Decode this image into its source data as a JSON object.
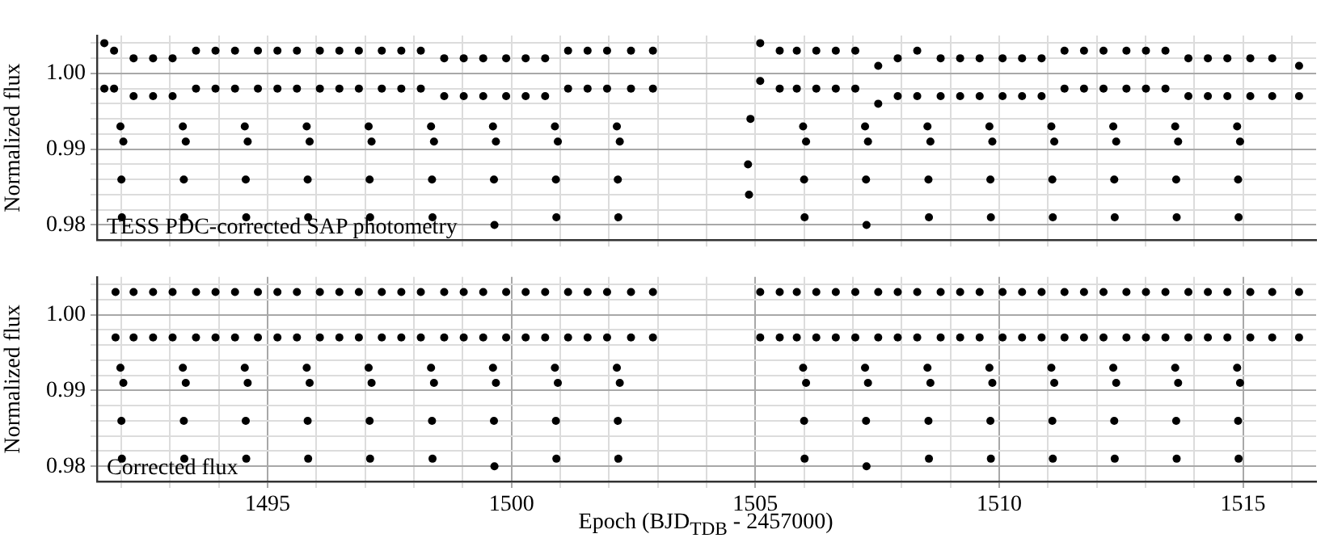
{
  "chart_data": [
    {
      "type": "scatter",
      "ylabel": "Normalized flux",
      "annotations": [
        "TESS PDC-corrected SAP photometry"
      ],
      "xlim": [
        1491.5,
        1516.5
      ],
      "ylim": [
        0.978,
        1.005
      ],
      "xticks": [
        {
          "value": 1492,
          "label": null
        },
        {
          "value": 1493,
          "label": null
        },
        {
          "value": 1494,
          "label": null
        },
        {
          "value": 1495,
          "label": null
        },
        {
          "value": 1496,
          "label": null
        },
        {
          "value": 1497,
          "label": null
        },
        {
          "value": 1498,
          "label": null
        },
        {
          "value": 1499,
          "label": null
        },
        {
          "value": 1500,
          "label": null
        },
        {
          "value": 1501,
          "label": null
        },
        {
          "value": 1502,
          "label": null
        },
        {
          "value": 1503,
          "label": null
        },
        {
          "value": 1504,
          "label": null
        },
        {
          "value": 1505,
          "label": null
        },
        {
          "value": 1506,
          "label": null
        },
        {
          "value": 1507,
          "label": null
        },
        {
          "value": 1508,
          "label": null
        },
        {
          "value": 1509,
          "label": null
        },
        {
          "value": 1510,
          "label": null
        },
        {
          "value": 1511,
          "label": null
        },
        {
          "value": 1512,
          "label": null
        },
        {
          "value": 1513,
          "label": null
        },
        {
          "value": 1514,
          "label": null
        },
        {
          "value": 1515,
          "label": null
        },
        {
          "value": 1516,
          "label": null
        }
      ],
      "yticks": [
        {
          "value": 0.98,
          "label": "0.98"
        },
        {
          "value": 0.982,
          "label": null
        },
        {
          "value": 0.984,
          "label": null
        },
        {
          "value": 0.986,
          "label": null
        },
        {
          "value": 0.988,
          "label": null
        },
        {
          "value": 0.99,
          "label": "0.99"
        },
        {
          "value": 0.992,
          "label": null
        },
        {
          "value": 0.994,
          "label": null
        },
        {
          "value": 0.996,
          "label": null
        },
        {
          "value": 0.998,
          "label": null
        },
        {
          "value": 1.0,
          "label": "1.00"
        },
        {
          "value": 1.002,
          "label": null
        },
        {
          "value": 1.004,
          "label": null
        }
      ],
      "grid": true,
      "legend": false,
      "marker": "circle",
      "tick_labels": "y",
      "series": [
        {
          "color": "#000000",
          "x": [
            1491.65,
            1491.65,
            1491.85,
            1491.85,
            1491.98,
            1492.0,
            1492.01,
            1492.04,
            1492.25,
            1492.25,
            1492.65,
            1492.65,
            1493.05,
            1493.05,
            1493.26,
            1493.28,
            1493.29,
            1493.32,
            1493.53,
            1493.53,
            1493.93,
            1493.93,
            1494.33,
            1494.33,
            1494.53,
            1494.55,
            1494.56,
            1494.59,
            1494.8,
            1494.8,
            1495.2,
            1495.2,
            1495.6,
            1495.6,
            1495.8,
            1495.82,
            1495.83,
            1495.86,
            1496.07,
            1496.07,
            1496.47,
            1496.47,
            1496.87,
            1496.87,
            1497.07,
            1497.09,
            1497.1,
            1497.13,
            1497.34,
            1497.34,
            1497.74,
            1497.74,
            1498.14,
            1498.14,
            1498.35,
            1498.37,
            1498.38,
            1498.41,
            1498.62,
            1498.62,
            1499.02,
            1499.02,
            1499.42,
            1499.42,
            1499.62,
            1499.64,
            1499.65,
            1499.68,
            1499.89,
            1499.89,
            1500.29,
            1500.29,
            1500.69,
            1500.69,
            1500.89,
            1500.91,
            1500.92,
            1500.95,
            1501.16,
            1501.16,
            1501.56,
            1501.56,
            1501.96,
            1501.96,
            1502.16,
            1502.18,
            1502.19,
            1502.22,
            1502.45,
            1502.45,
            1502.9,
            1502.9,
            1504.85,
            1504.87,
            1504.9,
            1505.1,
            1505.1,
            1505.5,
            1505.5,
            1505.85,
            1505.85,
            1505.98,
            1506.0,
            1506.01,
            1506.04,
            1506.25,
            1506.25,
            1506.65,
            1506.65,
            1507.05,
            1507.05,
            1507.25,
            1507.27,
            1507.28,
            1507.31,
            1507.52,
            1507.52,
            1507.92,
            1507.92,
            1508.32,
            1508.32,
            1508.53,
            1508.55,
            1508.56,
            1508.59,
            1508.8,
            1508.8,
            1509.2,
            1509.2,
            1509.6,
            1509.6,
            1509.8,
            1509.82,
            1509.83,
            1509.86,
            1510.07,
            1510.07,
            1510.47,
            1510.47,
            1510.87,
            1510.87,
            1511.07,
            1511.09,
            1511.1,
            1511.13,
            1511.34,
            1511.34,
            1511.74,
            1511.74,
            1512.14,
            1512.14,
            1512.34,
            1512.36,
            1512.37,
            1512.4,
            1512.61,
            1512.61,
            1513.01,
            1513.01,
            1513.41,
            1513.41,
            1513.61,
            1513.63,
            1513.64,
            1513.67,
            1513.88,
            1513.88,
            1514.28,
            1514.28,
            1514.68,
            1514.68,
            1514.88,
            1514.9,
            1514.91,
            1514.94,
            1515.15,
            1515.15,
            1515.6,
            1515.6,
            1516.15,
            1516.15
          ],
          "values": [
            1.004,
            0.998,
            1.003,
            0.998,
            0.993,
            0.986,
            0.981,
            0.991,
            1.002,
            0.997,
            1.002,
            0.997,
            1.002,
            0.997,
            0.993,
            0.986,
            0.981,
            0.991,
            1.003,
            0.998,
            1.003,
            0.998,
            1.003,
            0.998,
            0.993,
            0.986,
            0.981,
            0.991,
            1.003,
            0.998,
            1.003,
            0.998,
            1.003,
            0.998,
            0.993,
            0.986,
            0.981,
            0.991,
            1.003,
            0.998,
            1.003,
            0.998,
            1.003,
            0.998,
            0.993,
            0.986,
            0.981,
            0.991,
            1.003,
            0.998,
            1.003,
            0.998,
            1.003,
            0.998,
            0.993,
            0.986,
            0.981,
            0.991,
            1.002,
            0.997,
            1.002,
            0.997,
            1.002,
            0.997,
            0.993,
            0.986,
            0.98,
            0.991,
            1.002,
            0.997,
            1.002,
            0.997,
            1.002,
            0.997,
            0.993,
            0.986,
            0.981,
            0.991,
            1.003,
            0.998,
            1.003,
            0.998,
            1.003,
            0.998,
            0.993,
            0.986,
            0.981,
            0.991,
            1.003,
            0.998,
            1.003,
            0.998,
            0.988,
            0.984,
            0.994,
            1.004,
            0.999,
            1.003,
            0.998,
            1.003,
            0.998,
            0.993,
            0.986,
            0.981,
            0.991,
            1.003,
            0.998,
            1.003,
            0.998,
            1.003,
            0.998,
            0.993,
            0.986,
            0.98,
            0.991,
            1.001,
            0.996,
            1.002,
            0.997,
            1.003,
            0.997,
            0.993,
            0.986,
            0.981,
            0.991,
            1.002,
            0.997,
            1.002,
            0.997,
            1.002,
            0.997,
            0.993,
            0.986,
            0.981,
            0.991,
            1.002,
            0.997,
            1.002,
            0.997,
            1.002,
            0.997,
            0.993,
            0.986,
            0.981,
            0.991,
            1.003,
            0.998,
            1.003,
            0.998,
            1.003,
            0.998,
            0.993,
            0.986,
            0.981,
            0.991,
            1.003,
            0.998,
            1.003,
            0.998,
            1.003,
            0.998,
            0.993,
            0.986,
            0.981,
            0.991,
            1.002,
            0.997,
            1.002,
            0.997,
            1.002,
            0.997,
            0.993,
            0.986,
            0.981,
            0.991,
            1.002,
            0.997,
            1.002,
            0.997,
            1.001,
            0.997
          ]
        }
      ]
    },
    {
      "type": "scatter",
      "ylabel": "Normalized flux",
      "xlabel": "Epoch (BJD$_{TDB}$ - 2457000)",
      "annotations": [
        "Corrected flux"
      ],
      "xlim": [
        1491.5,
        1516.5
      ],
      "ylim": [
        0.978,
        1.005
      ],
      "xticks": [
        {
          "value": 1492,
          "label": null
        },
        {
          "value": 1493,
          "label": null
        },
        {
          "value": 1494,
          "label": null
        },
        1495,
        {
          "value": 1496,
          "label": null
        },
        {
          "value": 1497,
          "label": null
        },
        {
          "value": 1498,
          "label": null
        },
        {
          "value": 1499,
          "label": null
        },
        1500,
        {
          "value": 1501,
          "label": null
        },
        {
          "value": 1502,
          "label": null
        },
        {
          "value": 1503,
          "label": null
        },
        {
          "value": 1504,
          "label": null
        },
        1505,
        {
          "value": 1506,
          "label": null
        },
        {
          "value": 1507,
          "label": null
        },
        {
          "value": 1508,
          "label": null
        },
        {
          "value": 1509,
          "label": null
        },
        1510,
        {
          "value": 1511,
          "label": null
        },
        {
          "value": 1512,
          "label": null
        },
        {
          "value": 1513,
          "label": null
        },
        {
          "value": 1514,
          "label": null
        },
        1515,
        {
          "value": 1516,
          "label": null
        }
      ],
      "yticks": [
        {
          "value": 0.98,
          "label": "0.98"
        },
        {
          "value": 0.982,
          "label": null
        },
        {
          "value": 0.984,
          "label": null
        },
        {
          "value": 0.986,
          "label": null
        },
        {
          "value": 0.988,
          "label": null
        },
        {
          "value": 0.99,
          "label": "0.99"
        },
        {
          "value": 0.992,
          "label": null
        },
        {
          "value": 0.994,
          "label": null
        },
        {
          "value": 0.996,
          "label": null
        },
        {
          "value": 0.998,
          "label": null
        },
        {
          "value": 1.0,
          "label": "1.00"
        },
        {
          "value": 1.002,
          "label": null
        },
        {
          "value": 1.004,
          "label": null
        }
      ],
      "grid": true,
      "legend": false,
      "marker": "circle",
      "series": [
        {
          "color": "#000000",
          "x": [
            1491.88,
            1491.88,
            1491.98,
            1492.0,
            1492.01,
            1492.04,
            1492.25,
            1492.25,
            1492.65,
            1492.65,
            1493.05,
            1493.05,
            1493.26,
            1493.28,
            1493.29,
            1493.32,
            1493.53,
            1493.53,
            1493.93,
            1493.93,
            1494.33,
            1494.33,
            1494.53,
            1494.55,
            1494.56,
            1494.59,
            1494.8,
            1494.8,
            1495.2,
            1495.2,
            1495.6,
            1495.6,
            1495.8,
            1495.82,
            1495.83,
            1495.86,
            1496.07,
            1496.07,
            1496.47,
            1496.47,
            1496.87,
            1496.87,
            1497.07,
            1497.09,
            1497.1,
            1497.13,
            1497.34,
            1497.34,
            1497.74,
            1497.74,
            1498.14,
            1498.14,
            1498.35,
            1498.37,
            1498.38,
            1498.41,
            1498.62,
            1498.62,
            1499.02,
            1499.02,
            1499.42,
            1499.42,
            1499.62,
            1499.64,
            1499.65,
            1499.68,
            1499.89,
            1499.89,
            1500.29,
            1500.29,
            1500.69,
            1500.69,
            1500.89,
            1500.91,
            1500.92,
            1500.95,
            1501.16,
            1501.16,
            1501.56,
            1501.56,
            1501.96,
            1501.96,
            1502.16,
            1502.18,
            1502.19,
            1502.22,
            1502.45,
            1502.45,
            1502.9,
            1502.9,
            1505.1,
            1505.1,
            1505.5,
            1505.5,
            1505.85,
            1505.85,
            1505.98,
            1506.0,
            1506.01,
            1506.04,
            1506.25,
            1506.25,
            1506.65,
            1506.65,
            1507.05,
            1507.05,
            1507.25,
            1507.27,
            1507.28,
            1507.31,
            1507.52,
            1507.52,
            1507.92,
            1507.92,
            1508.32,
            1508.32,
            1508.53,
            1508.55,
            1508.56,
            1508.59,
            1508.8,
            1508.8,
            1509.2,
            1509.2,
            1509.6,
            1509.6,
            1509.8,
            1509.82,
            1509.83,
            1509.86,
            1510.07,
            1510.07,
            1510.47,
            1510.47,
            1510.87,
            1510.87,
            1511.07,
            1511.09,
            1511.1,
            1511.13,
            1511.34,
            1511.34,
            1511.74,
            1511.74,
            1512.14,
            1512.14,
            1512.34,
            1512.36,
            1512.37,
            1512.4,
            1512.61,
            1512.61,
            1513.01,
            1513.01,
            1513.41,
            1513.41,
            1513.61,
            1513.63,
            1513.64,
            1513.67,
            1513.88,
            1513.88,
            1514.28,
            1514.28,
            1514.68,
            1514.68,
            1514.88,
            1514.9,
            1514.91,
            1514.94,
            1515.15,
            1515.15,
            1515.6,
            1515.6,
            1516.15,
            1516.15
          ],
          "values": [
            1.003,
            0.997,
            0.993,
            0.986,
            0.981,
            0.991,
            1.003,
            0.997,
            1.003,
            0.997,
            1.003,
            0.997,
            0.993,
            0.986,
            0.981,
            0.991,
            1.003,
            0.997,
            1.003,
            0.997,
            1.003,
            0.997,
            0.993,
            0.986,
            0.981,
            0.991,
            1.003,
            0.997,
            1.003,
            0.997,
            1.003,
            0.997,
            0.993,
            0.986,
            0.981,
            0.991,
            1.003,
            0.997,
            1.003,
            0.997,
            1.003,
            0.997,
            0.993,
            0.986,
            0.981,
            0.991,
            1.003,
            0.997,
            1.003,
            0.997,
            1.003,
            0.997,
            0.993,
            0.986,
            0.981,
            0.991,
            1.003,
            0.997,
            1.003,
            0.997,
            1.003,
            0.997,
            0.993,
            0.986,
            0.98,
            0.991,
            1.003,
            0.997,
            1.003,
            0.997,
            1.003,
            0.997,
            0.993,
            0.986,
            0.981,
            0.991,
            1.003,
            0.997,
            1.003,
            0.997,
            1.003,
            0.997,
            0.993,
            0.986,
            0.981,
            0.991,
            1.003,
            0.997,
            1.003,
            0.997,
            1.003,
            0.997,
            1.003,
            0.997,
            1.003,
            0.997,
            0.993,
            0.986,
            0.981,
            0.991,
            1.003,
            0.997,
            1.003,
            0.997,
            1.003,
            0.997,
            0.993,
            0.986,
            0.98,
            0.991,
            1.003,
            0.997,
            1.003,
            0.997,
            1.003,
            0.997,
            0.993,
            0.986,
            0.981,
            0.991,
            1.003,
            0.997,
            1.003,
            0.997,
            1.003,
            0.997,
            0.993,
            0.986,
            0.981,
            0.991,
            1.003,
            0.997,
            1.003,
            0.997,
            1.003,
            0.997,
            0.993,
            0.986,
            0.981,
            0.991,
            1.003,
            0.997,
            1.003,
            0.997,
            1.003,
            0.997,
            0.993,
            0.986,
            0.981,
            0.991,
            1.003,
            0.997,
            1.003,
            0.997,
            1.003,
            0.997,
            0.993,
            0.986,
            0.981,
            0.991,
            1.003,
            0.997,
            1.003,
            0.997,
            1.003,
            0.997,
            0.993,
            0.986,
            0.981,
            0.991,
            1.003,
            0.997,
            1.003,
            0.997,
            1.003,
            0.997
          ]
        }
      ]
    }
  ]
}
